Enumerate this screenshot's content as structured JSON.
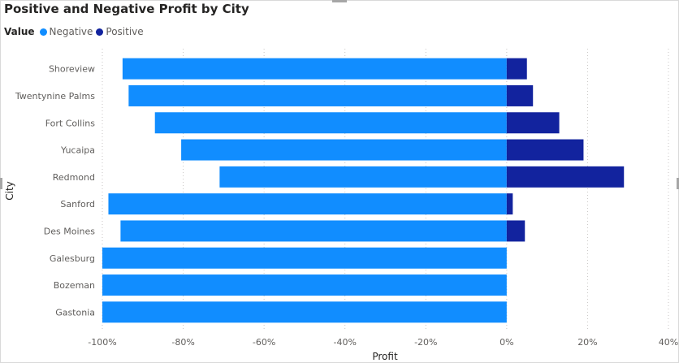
{
  "chart_data": {
    "type": "bar",
    "orientation": "horizontal",
    "stacked": true,
    "title": "Positive and Negative Profit by City",
    "legend_title": "Value",
    "legend_position": "top-left",
    "xlabel": "Profit",
    "ylabel": "City",
    "xlim": [
      -100,
      40
    ],
    "x_ticks": [
      -100,
      -80,
      -60,
      -40,
      -20,
      0,
      20,
      40
    ],
    "x_tick_labels": [
      "-100%",
      "-80%",
      "-60%",
      "-40%",
      "-20%",
      "0%",
      "20%",
      "40%"
    ],
    "grid": "vertical dotted",
    "categories": [
      "Shoreview",
      "Twentynine Palms",
      "Fort Collins",
      "Yucaipa",
      "Redmond",
      "Sanford",
      "Des Moines",
      "Galesburg",
      "Bozeman",
      "Gastonia"
    ],
    "series": [
      {
        "name": "Negative",
        "color": "#118DFF",
        "values": [
          -95,
          -93.5,
          -87,
          -80.5,
          -71,
          -98.5,
          -95.5,
          -100,
          -100,
          -100
        ]
      },
      {
        "name": "Positive",
        "color": "#12239E",
        "values": [
          5,
          6.5,
          13,
          19,
          29,
          1.5,
          4.5,
          0,
          0,
          0
        ]
      }
    ]
  }
}
